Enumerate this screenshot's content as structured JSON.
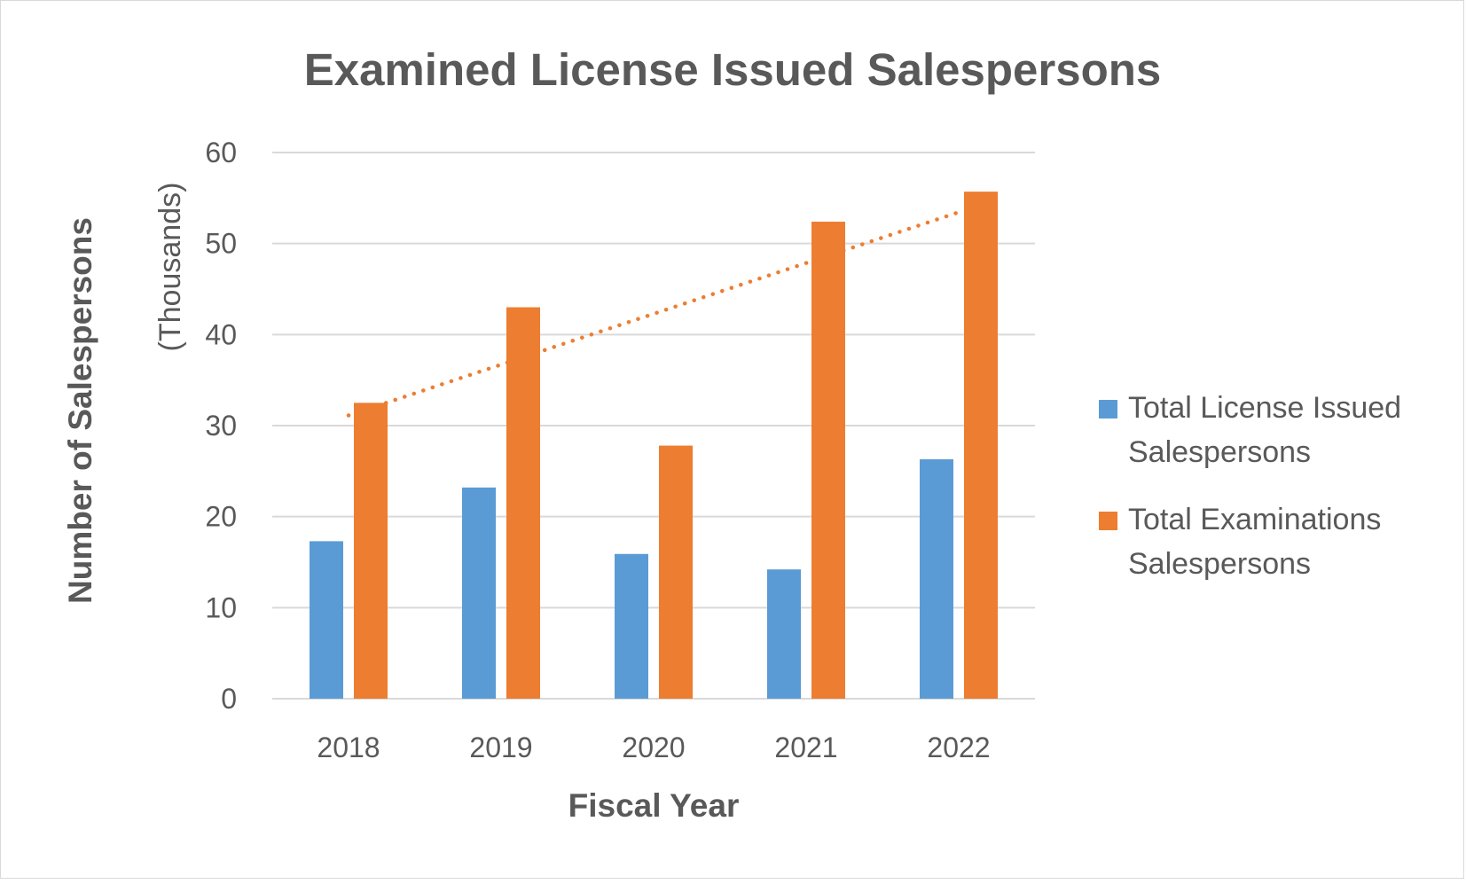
{
  "chart_data": {
    "type": "bar",
    "title": "Examined License Issued Salespersons",
    "xlabel": "Fiscal Year",
    "ylabel": "Number of Salespersons",
    "ylabel_sub": "(Thousands)",
    "categories": [
      "2018",
      "2019",
      "2020",
      "2021",
      "2022"
    ],
    "ylim": [
      0,
      60
    ],
    "yticks": [
      0,
      10,
      20,
      30,
      40,
      50,
      60
    ],
    "grid": true,
    "legend_position": "right",
    "series": [
      {
        "name": "Total License Issued Salespersons",
        "legend_lines": [
          "Total License Issued",
          "Salespersons"
        ],
        "color": "#5b9bd5",
        "values": [
          17.3,
          23.2,
          15.9,
          14.2,
          26.3
        ]
      },
      {
        "name": "Total Examinations Salespersons",
        "legend_lines": [
          "Total Examinations",
          "Salespersons"
        ],
        "color": "#ed7d31",
        "values": [
          32.5,
          43.0,
          27.8,
          52.4,
          55.7
        ]
      }
    ],
    "trendline": {
      "series": "Total Examinations Salespersons",
      "type": "linear",
      "style": "dotted",
      "color": "#ed7d31"
    }
  }
}
